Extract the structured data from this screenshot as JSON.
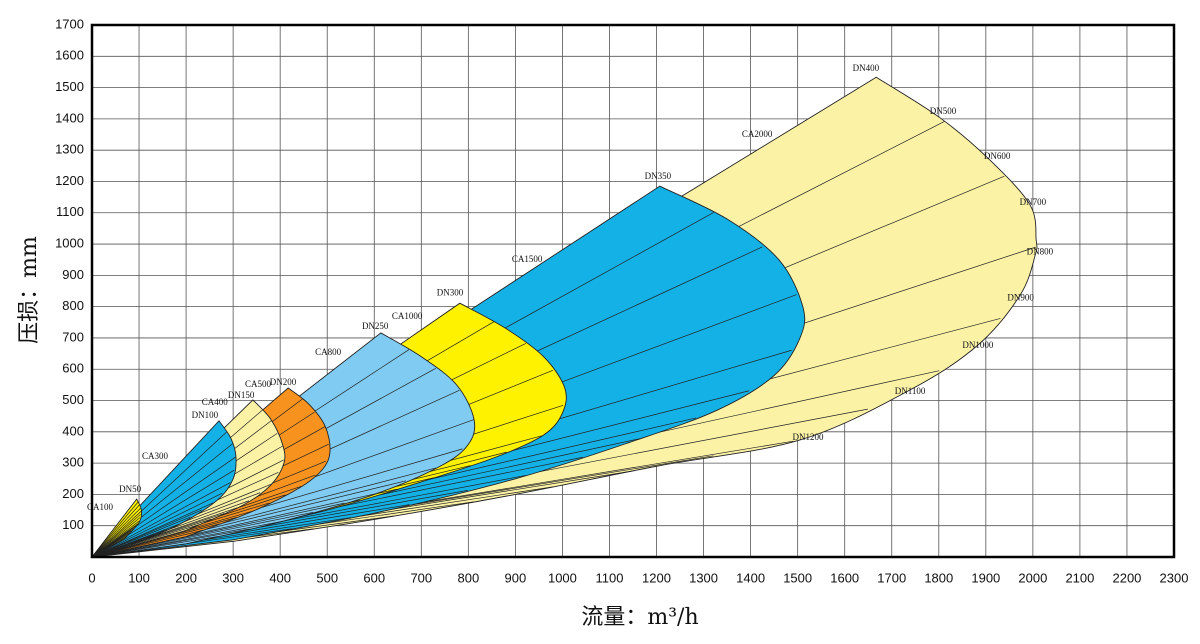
{
  "chart_data": {
    "type": "fan",
    "xlabel": "流量：m³/h",
    "ylabel": "压损：mm",
    "xlim": [
      0,
      2300
    ],
    "ylim": [
      0,
      1700
    ],
    "xticks": [
      0,
      100,
      200,
      300,
      400,
      500,
      600,
      700,
      800,
      900,
      1000,
      1100,
      1200,
      1300,
      1400,
      1500,
      1600,
      1700,
      1800,
      1900,
      2000,
      2100,
      2200,
      2300
    ],
    "yticks": [
      100,
      200,
      300,
      400,
      500,
      600,
      700,
      800,
      900,
      1000,
      1100,
      1200,
      1300,
      1400,
      1500,
      1600,
      1700
    ],
    "grid": true,
    "series": [
      {
        "color": "#fbf2a6",
        "x": [
          0,
          1667,
          1803,
          1909,
          1994,
          2007,
          2005,
          1973,
          1883,
          1739,
          1505,
          1200,
          900,
          600,
          300,
          0
        ],
        "values": [
          0,
          1533,
          1403,
          1268,
          1125,
          1013,
          965,
          837,
          677,
          534,
          374,
          290,
          200,
          120,
          50,
          0
        ]
      },
      {
        "color": "#14b1e7",
        "x": [
          0,
          1207,
          1350,
          1460,
          1511,
          1505,
          1450,
          1330,
          1150,
          900,
          600,
          300,
          0
        ],
        "values": [
          0,
          1185,
          1080,
          950,
          800,
          700,
          580,
          470,
          370,
          250,
          140,
          55,
          0
        ]
      },
      {
        "color": "#fff200",
        "x": [
          0,
          782,
          880,
          960,
          1005,
          1000,
          960,
          860,
          700,
          500,
          250,
          0
        ],
        "values": [
          0,
          811,
          730,
          640,
          540,
          460,
          390,
          320,
          240,
          150,
          62,
          0
        ]
      },
      {
        "color": "#7fcbf1",
        "x": [
          0,
          614,
          700,
          775,
          812,
          800,
          740,
          600,
          400,
          200,
          0
        ],
        "values": [
          0,
          716,
          640,
          550,
          440,
          360,
          290,
          200,
          112,
          42,
          0
        ]
      },
      {
        "color": "#f7921e",
        "x": [
          0,
          417,
          460,
          495,
          506,
          490,
          440,
          340,
          200,
          0
        ],
        "values": [
          0,
          540,
          490,
          420,
          340,
          280,
          220,
          145,
          65,
          0
        ]
      },
      {
        "color": "#fbf2a6",
        "x": [
          0,
          342,
          380,
          405,
          408,
          380,
          320,
          200,
          0
        ],
        "values": [
          0,
          502,
          440,
          360,
          300,
          230,
          165,
          85,
          0
        ]
      },
      {
        "color": "#14b1e7",
        "x": [
          0,
          270,
          295,
          306,
          300,
          265,
          180,
          80,
          0
        ],
        "values": [
          0,
          435,
          380,
          320,
          250,
          180,
          100,
          38,
          0
        ]
      },
      {
        "color": "#fff200",
        "x": [
          0,
          95,
          105,
          100,
          70,
          0
        ],
        "values": [
          0,
          185,
          150,
          110,
          60,
          0
        ]
      }
    ],
    "annotations": [
      {
        "text": "CA100",
        "x": 17,
        "y": 156
      },
      {
        "text": "DN50",
        "x": 81,
        "y": 214
      },
      {
        "text": "CA300",
        "x": 134,
        "y": 320
      },
      {
        "text": "DN100",
        "x": 240,
        "y": 450
      },
      {
        "text": "CA400",
        "x": 261,
        "y": 492
      },
      {
        "text": "DN150",
        "x": 317,
        "y": 514
      },
      {
        "text": "CA500",
        "x": 353,
        "y": 550
      },
      {
        "text": "DN200",
        "x": 406,
        "y": 556
      },
      {
        "text": "CA800",
        "x": 502,
        "y": 652
      },
      {
        "text": "DN250",
        "x": 602,
        "y": 735
      },
      {
        "text": "CA1000",
        "x": 670,
        "y": 767
      },
      {
        "text": "DN300",
        "x": 761,
        "y": 843
      },
      {
        "text": "CA1500",
        "x": 925,
        "y": 949
      },
      {
        "text": "DN350",
        "x": 1203,
        "y": 1214
      },
      {
        "text": "CA2000",
        "x": 1414,
        "y": 1348
      },
      {
        "text": "DN400",
        "x": 1645,
        "y": 1559
      },
      {
        "text": "DN500",
        "x": 1809,
        "y": 1422
      },
      {
        "text": "DN600",
        "x": 1924,
        "y": 1278
      },
      {
        "text": "DN700",
        "x": 2000,
        "y": 1131
      },
      {
        "text": "DN800",
        "x": 2015,
        "y": 974
      },
      {
        "text": "DN900",
        "x": 1974,
        "y": 827
      },
      {
        "text": "DN1000",
        "x": 1883,
        "y": 674
      },
      {
        "text": "DN1100",
        "x": 1739,
        "y": 527
      },
      {
        "text": "DN1200",
        "x": 1522,
        "y": 380
      }
    ]
  }
}
